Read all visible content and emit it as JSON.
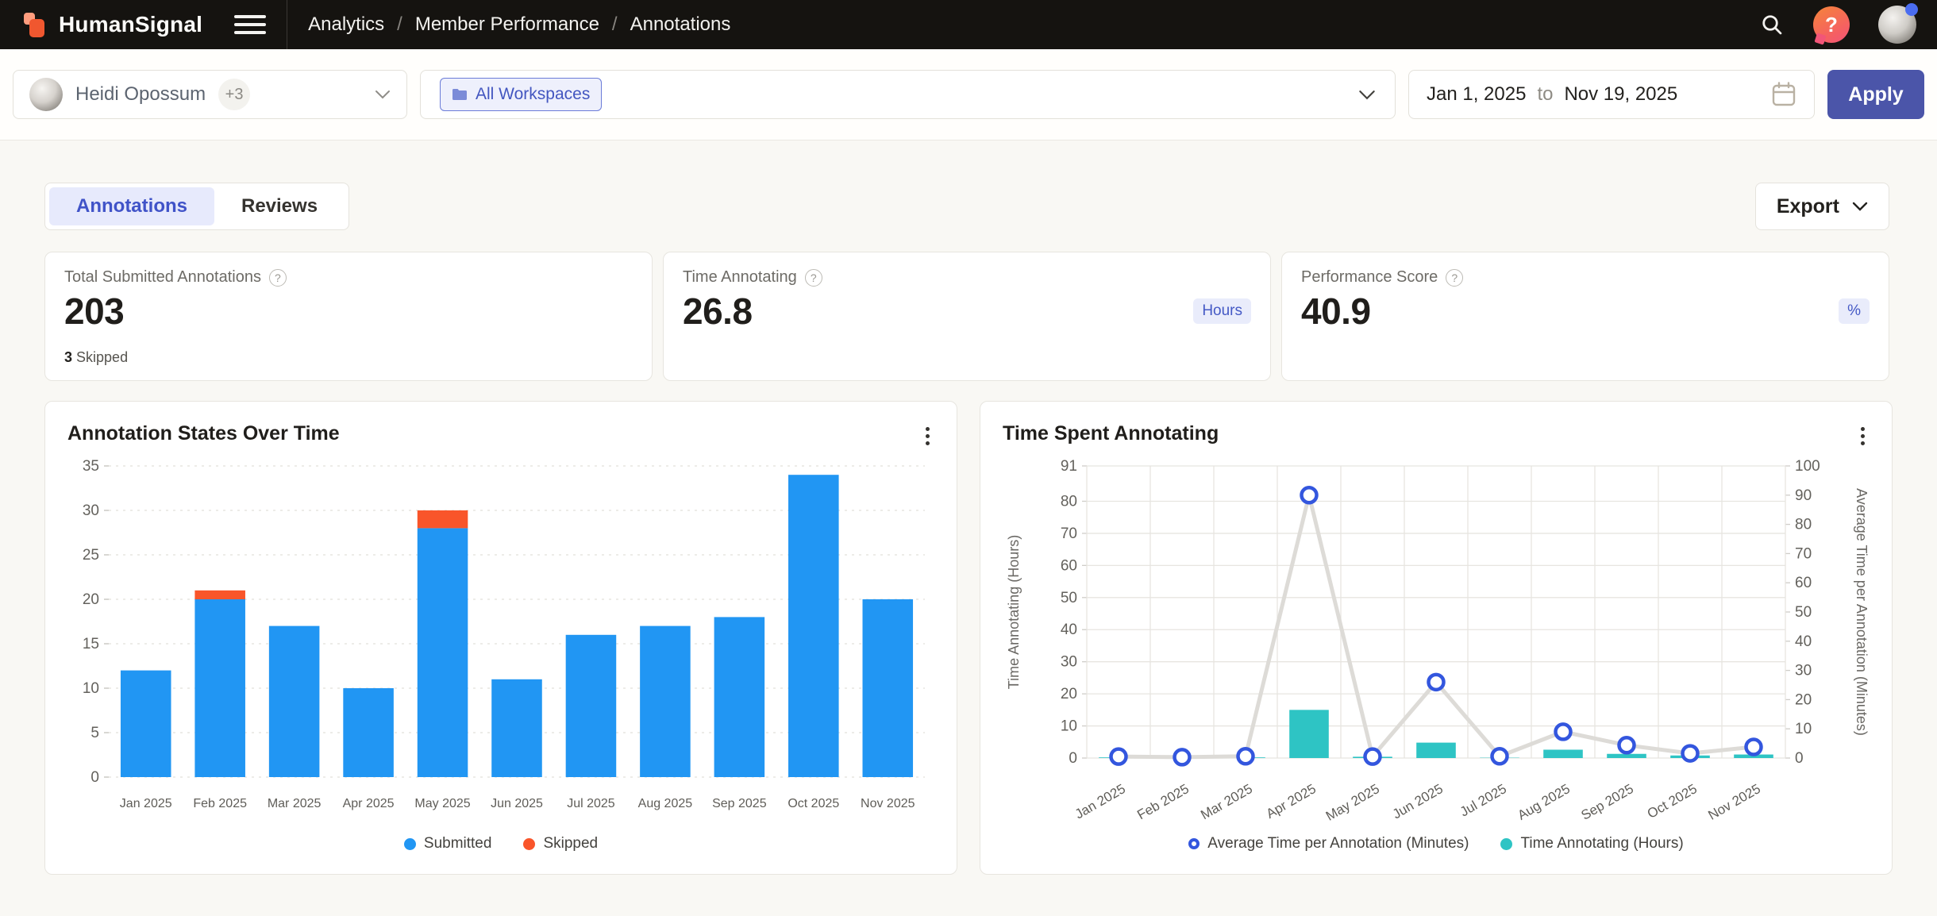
{
  "header": {
    "brand": "HumanSignal",
    "breadcrumbs": [
      "Analytics",
      "Member Performance",
      "Annotations"
    ]
  },
  "filters": {
    "member": {
      "name": "Heidi Opossum",
      "extra_count": "+3"
    },
    "workspace_chip": "All Workspaces",
    "date_from": "Jan 1, 2025",
    "date_to_word": "to",
    "date_to": "Nov 19, 2025",
    "apply_label": "Apply"
  },
  "tabs": {
    "annotations": "Annotations",
    "reviews": "Reviews",
    "export_label": "Export"
  },
  "stats": {
    "card1": {
      "title": "Total Submitted Annotations",
      "value": "203",
      "footnote_value": "3",
      "footnote_label": "Skipped"
    },
    "card2": {
      "title": "Time Annotating",
      "value": "26.8",
      "unit": "Hours"
    },
    "card3": {
      "title": "Performance Score",
      "value": "40.9",
      "unit": "%"
    }
  },
  "icons": {
    "search": "search-icon",
    "help": "help-bubble-icon",
    "calendar": "calendar-icon",
    "folder": "folder-icon",
    "kebab": "kebab-menu-icon",
    "chevron": "chevron-down-icon"
  },
  "colors": {
    "accent_indigo": "#4b55a9",
    "submitted_blue": "#2196f3",
    "skipped_orange": "#f9552a",
    "hours_teal": "#2ec4c4",
    "marker_blue": "#3356de",
    "line_gray": "#dddbd7",
    "grid": "#e7e5e0",
    "tick_text": "#63615c"
  },
  "chart_data": [
    {
      "type": "bar",
      "title": "Annotation States Over Time",
      "categories": [
        "Jan 2025",
        "Feb 2025",
        "Mar 2025",
        "Apr 2025",
        "May 2025",
        "Jun 2025",
        "Jul 2025",
        "Aug 2025",
        "Sep 2025",
        "Oct 2025",
        "Nov 2025"
      ],
      "stacked": true,
      "series": [
        {
          "name": "Submitted",
          "color": "#2196f3",
          "values": [
            12,
            20,
            17,
            10,
            28,
            11,
            16,
            17,
            18,
            34,
            20
          ]
        },
        {
          "name": "Skipped",
          "color": "#f9552a",
          "values": [
            0,
            1,
            0,
            0,
            2,
            0,
            0,
            0,
            0,
            0,
            0
          ]
        }
      ],
      "ylim": [
        0,
        35
      ],
      "yticks": [
        0,
        5,
        10,
        15,
        20,
        25,
        30,
        35
      ],
      "grid": "horizontal-dashed",
      "legend_position": "bottom"
    },
    {
      "type": "line+bar",
      "title": "Time Spent Annotating",
      "categories": [
        "Jan 2025",
        "Feb 2025",
        "Mar 2025",
        "Apr 2025",
        "May 2025",
        "Jun 2025",
        "Jul 2025",
        "Aug 2025",
        "Sep 2025",
        "Oct 2025",
        "Nov 2025"
      ],
      "series": [
        {
          "name": "Average Time per Annotation (Minutes)",
          "type": "line",
          "axis": "right",
          "marker_color": "#3356de",
          "line_color": "#dddbd7",
          "values": [
            0.5,
            0.3,
            0.6,
            90,
            0.5,
            26,
            0.6,
            9,
            4.4,
            1.6,
            3.8
          ]
        },
        {
          "name": "Time Annotating (Hours)",
          "type": "bar",
          "axis": "left",
          "color": "#2ec4c4",
          "values": [
            0.2,
            0.3,
            0.2,
            15,
            0.4,
            4.8,
            0.1,
            2.6,
            1.3,
            0.8,
            1.1
          ]
        }
      ],
      "left_axis": {
        "label": "Time Annotating (Hours)",
        "max": 91,
        "ticks": [
          0,
          10,
          20,
          30,
          40,
          50,
          60,
          70,
          80,
          91
        ]
      },
      "right_axis": {
        "label": "Average Time per Annotation (Minutes)",
        "max": 100,
        "ticks": [
          0,
          10,
          20,
          30,
          40,
          50,
          60,
          70,
          80,
          90,
          100
        ]
      },
      "grid": "both",
      "legend_position": "bottom"
    }
  ]
}
